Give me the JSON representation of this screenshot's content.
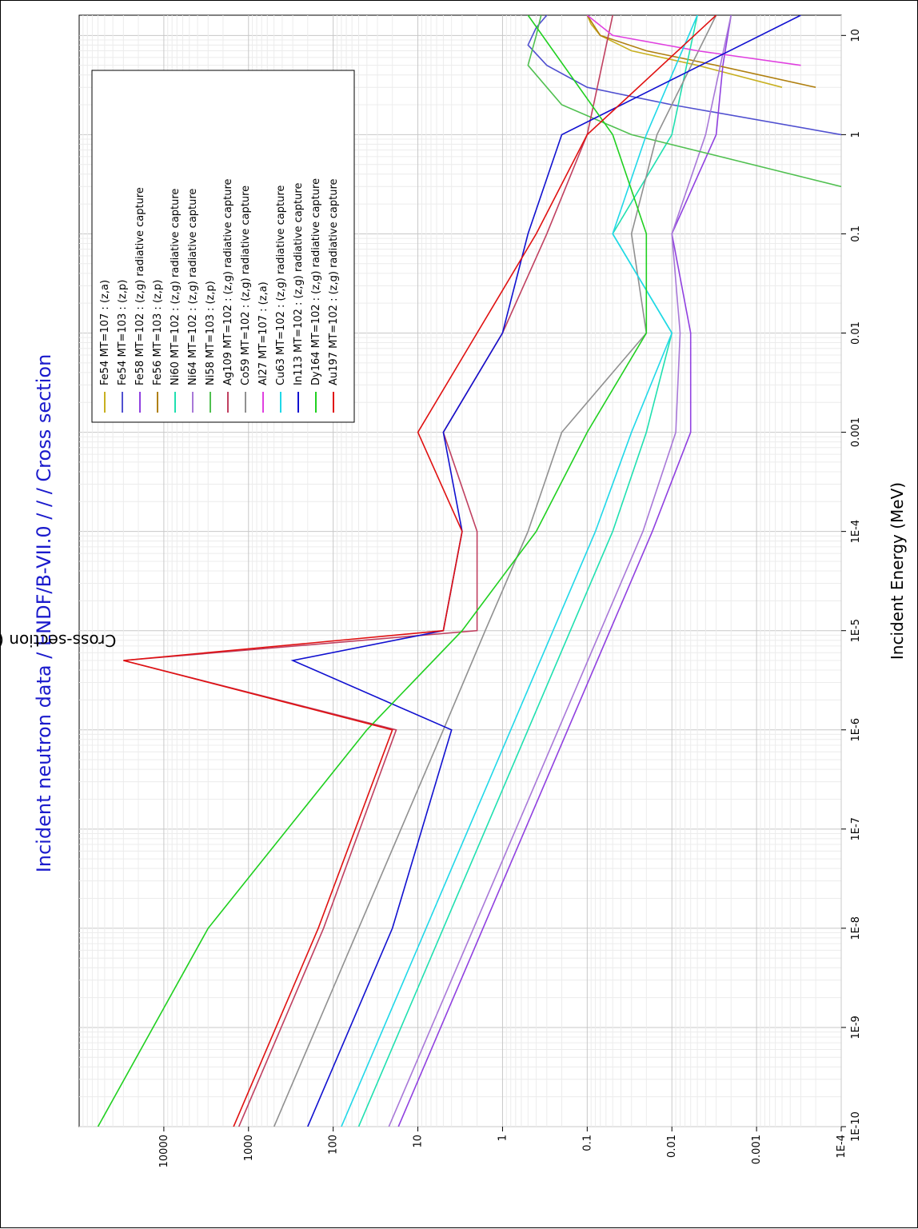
{
  "chart_data": {
    "type": "line",
    "title": "Incident neutron data / ENDF/B-VII.0 / / / Cross section",
    "xlabel": "Incident Energy (MeV)",
    "ylabel": "Cross-section (b)",
    "x_scale": "log",
    "y_scale": "log",
    "xlim": [
      1e-10,
      16
    ],
    "ylim": [
      0.0001,
      100000
    ],
    "x_ticks": [
      "1E-10",
      "1E-9",
      "1E-8",
      "1E-7",
      "1E-6",
      "1E-5",
      "1E-4",
      "0.001",
      "0.01",
      "0.1",
      "1",
      "10"
    ],
    "y_ticks": [
      "1E-4",
      "0.001",
      "0.01",
      "0.1",
      "1",
      "10",
      "100",
      "1000",
      "10000"
    ],
    "grid": true,
    "legend_position": "top-right",
    "series": [
      {
        "name": "Fe54 MT=107 : (z,a)",
        "color": "#c8b020",
        "x": [
          3,
          5,
          7,
          10,
          13,
          16
        ],
        "y": [
          0.0005,
          0.005,
          0.03,
          0.07,
          0.09,
          0.1
        ]
      },
      {
        "name": "Fe54 MT=103 : (z,p)",
        "color": "#5050d0",
        "x": [
          1,
          2,
          3,
          5,
          8,
          12,
          16
        ],
        "y": [
          0.0001,
          0.01,
          0.1,
          0.3,
          0.5,
          0.4,
          0.3
        ]
      },
      {
        "name": "Fe58 MT=102 : (z,g) radiative capture",
        "color": "#9040e0",
        "x": [
          1e-10,
          1e-08,
          1e-06,
          0.0001,
          0.001,
          0.01,
          0.1,
          1,
          5,
          16
        ],
        "y": [
          17,
          1.7,
          0.17,
          0.017,
          0.006,
          0.006,
          0.01,
          0.003,
          0.0025,
          0.002
        ]
      },
      {
        "name": "Fe56 MT=103 : (z,p)",
        "color": "#b08010",
        "x": [
          3,
          5,
          7,
          10,
          16
        ],
        "y": [
          0.0002,
          0.003,
          0.02,
          0.07,
          0.1
        ]
      },
      {
        "name": "Ni60 MT=102 : (z,g) radiative capture",
        "color": "#20e0b0",
        "x": [
          1e-10,
          1e-08,
          1e-06,
          0.0001,
          0.001,
          0.01,
          0.1,
          1,
          16
        ],
        "y": [
          50,
          5,
          0.5,
          0.05,
          0.02,
          0.01,
          0.05,
          0.01,
          0.005
        ]
      },
      {
        "name": "Ni64 MT=102 : (z,g) radiative capture",
        "color": "#a878d8",
        "x": [
          1e-10,
          1e-08,
          1e-06,
          0.0001,
          0.001,
          0.01,
          0.1,
          1,
          16
        ],
        "y": [
          22,
          2.2,
          0.22,
          0.022,
          0.009,
          0.008,
          0.01,
          0.004,
          0.002
        ]
      },
      {
        "name": "Ni58 MT=103 : (z,p)",
        "color": "#50c050",
        "x": [
          0.3,
          1,
          2,
          5,
          10,
          16
        ],
        "y": [
          0.0001,
          0.03,
          0.2,
          0.5,
          0.4,
          0.35
        ]
      },
      {
        "name": "Ag109 MT=102 : (z,g) radiative capture",
        "color": "#c04060",
        "x": [
          1e-10,
          1e-08,
          1e-06,
          5e-06,
          1e-05,
          0.0001,
          0.001,
          0.01,
          0.1,
          1,
          16
        ],
        "y": [
          1300,
          130,
          18,
          30000,
          2,
          2,
          5,
          1,
          0.3,
          0.1,
          0.05
        ]
      },
      {
        "name": "Co59 MT=102 : (z,g) radiative capture",
        "color": "#909090",
        "x": [
          1e-10,
          1e-08,
          1e-06,
          1e-05,
          0.0001,
          0.001,
          0.01,
          0.1,
          1,
          16
        ],
        "y": [
          500,
          50,
          5,
          1.6,
          0.5,
          0.2,
          0.02,
          0.03,
          0.015,
          0.003
        ]
      },
      {
        "name": "Al27 MT=107 : (z,a)",
        "color": "#e040e0",
        "x": [
          5,
          7,
          10,
          16
        ],
        "y": [
          0.0003,
          0.005,
          0.05,
          0.1
        ]
      },
      {
        "name": "Cu63 MT=102 : (z,g) radiative capture",
        "color": "#20d8e8",
        "x": [
          1e-10,
          1e-08,
          1e-06,
          0.0001,
          0.001,
          0.01,
          0.1,
          1,
          16
        ],
        "y": [
          80,
          8,
          0.8,
          0.08,
          0.03,
          0.01,
          0.05,
          0.02,
          0.005
        ]
      },
      {
        "name": "In113 MT=102 : (z,g) radiative capture",
        "color": "#1010d0",
        "x": [
          1e-10,
          1e-08,
          1e-06,
          5e-06,
          1e-05,
          0.0001,
          0.001,
          0.01,
          0.1,
          1,
          16
        ],
        "y": [
          200,
          20,
          4,
          300,
          5,
          3,
          5,
          1,
          0.5,
          0.2,
          0.0003
        ]
      },
      {
        "name": "Dy164 MT=102 : (z,g) radiative capture",
        "color": "#20d020",
        "x": [
          1e-10,
          1e-08,
          1e-06,
          1e-05,
          0.0001,
          0.001,
          0.01,
          0.1,
          1,
          16
        ],
        "y": [
          60000,
          3000,
          40,
          3,
          0.4,
          0.1,
          0.02,
          0.02,
          0.05,
          0.5
        ]
      },
      {
        "name": "Au197 MT=102 : (z,g) radiative capture",
        "color": "#e01010",
        "x": [
          1e-10,
          1e-08,
          1e-06,
          5e-06,
          1e-05,
          0.0001,
          0.001,
          0.01,
          0.1,
          1,
          16
        ],
        "y": [
          1500,
          150,
          20,
          30000,
          5,
          3,
          10,
          2,
          0.4,
          0.1,
          0.003
        ]
      }
    ]
  }
}
